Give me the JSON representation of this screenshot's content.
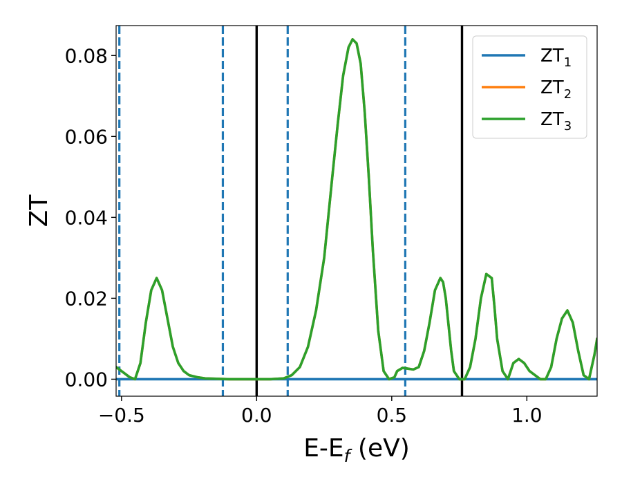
{
  "chart_data": {
    "type": "line",
    "xlabel": "E-E",
    "xlabel_sub": "f",
    "xlabel_unit": " (eV)",
    "ylabel": "ZT",
    "xlim": [
      -0.52,
      1.26
    ],
    "ylim": [
      -0.0042,
      0.0874
    ],
    "xticks": [
      -0.5,
      0.0,
      0.5,
      1.0
    ],
    "xtick_labels": [
      "−0.5",
      "0.0",
      "0.5",
      "1.0"
    ],
    "yticks": [
      0.0,
      0.02,
      0.04,
      0.06,
      0.08
    ],
    "ytick_labels": [
      "0.00",
      "0.02",
      "0.04",
      "0.06",
      "0.08"
    ],
    "grid": false,
    "legend_position": "top-right",
    "vlines": [
      {
        "x": -0.508,
        "style": "dashed",
        "color": "#1f77b4"
      },
      {
        "x": -0.125,
        "style": "dashed",
        "color": "#1f77b4"
      },
      {
        "x": 0.0,
        "style": "solid",
        "color": "#000000"
      },
      {
        "x": 0.115,
        "style": "dashed",
        "color": "#1f77b4"
      },
      {
        "x": 0.55,
        "style": "dashed",
        "color": "#1f77b4"
      },
      {
        "x": 0.76,
        "style": "solid",
        "color": "#000000"
      }
    ],
    "series": [
      {
        "name": "ZT",
        "name_sub": "1",
        "color": "#1f77b4",
        "x": [
          -0.52,
          1.26
        ],
        "y": [
          0.0,
          0.0
        ]
      },
      {
        "name": "ZT",
        "name_sub": "2",
        "color": "#ff7f0e",
        "x": [
          -0.52,
          -0.5,
          -0.47,
          -0.45,
          -0.43,
          -0.41,
          -0.39,
          -0.37,
          -0.35,
          -0.33,
          -0.31,
          -0.29,
          -0.27,
          -0.25,
          -0.22,
          -0.19,
          -0.15,
          -0.1,
          -0.05,
          0.0,
          0.05,
          0.1,
          0.13,
          0.16,
          0.19,
          0.22,
          0.25,
          0.28,
          0.3,
          0.32,
          0.34,
          0.355,
          0.37,
          0.385,
          0.4,
          0.415,
          0.43,
          0.45,
          0.47,
          0.49,
          0.51,
          0.52,
          0.54,
          0.56,
          0.58,
          0.6,
          0.62,
          0.64,
          0.66,
          0.68,
          0.69,
          0.7,
          0.72,
          0.73,
          0.75,
          0.77,
          0.79,
          0.81,
          0.83,
          0.85,
          0.87,
          0.88,
          0.89,
          0.91,
          0.93,
          0.95,
          0.97,
          0.99,
          1.01,
          1.03,
          1.05,
          1.07,
          1.09,
          1.11,
          1.13,
          1.15,
          1.17,
          1.19,
          1.21,
          1.23,
          1.25,
          1.26
        ],
        "y": [
          0.003,
          0.002,
          0.0005,
          0.0,
          0.004,
          0.014,
          0.022,
          0.025,
          0.022,
          0.015,
          0.008,
          0.004,
          0.002,
          0.001,
          0.0005,
          0.0002,
          0.0001,
          0.0,
          0.0,
          0.0,
          0.0,
          0.0002,
          0.001,
          0.003,
          0.008,
          0.017,
          0.03,
          0.05,
          0.063,
          0.075,
          0.082,
          0.084,
          0.083,
          0.078,
          0.066,
          0.05,
          0.032,
          0.012,
          0.002,
          0.0,
          0.0005,
          0.002,
          0.0028,
          0.0026,
          0.0024,
          0.003,
          0.007,
          0.014,
          0.022,
          0.025,
          0.024,
          0.02,
          0.007,
          0.002,
          0.0,
          0.0,
          0.003,
          0.01,
          0.02,
          0.026,
          0.025,
          0.018,
          0.01,
          0.002,
          0.0,
          0.004,
          0.005,
          0.004,
          0.002,
          0.001,
          0.0,
          0.0,
          0.003,
          0.01,
          0.015,
          0.017,
          0.014,
          0.007,
          0.001,
          0.0,
          0.006,
          0.01
        ]
      },
      {
        "name": "ZT",
        "name_sub": "3",
        "color": "#2ca02c",
        "x": [
          -0.52,
          -0.5,
          -0.47,
          -0.45,
          -0.43,
          -0.41,
          -0.39,
          -0.37,
          -0.35,
          -0.33,
          -0.31,
          -0.29,
          -0.27,
          -0.25,
          -0.22,
          -0.19,
          -0.15,
          -0.1,
          -0.05,
          0.0,
          0.05,
          0.1,
          0.13,
          0.16,
          0.19,
          0.22,
          0.25,
          0.28,
          0.3,
          0.32,
          0.34,
          0.355,
          0.37,
          0.385,
          0.4,
          0.415,
          0.43,
          0.45,
          0.47,
          0.49,
          0.51,
          0.52,
          0.54,
          0.56,
          0.58,
          0.6,
          0.62,
          0.64,
          0.66,
          0.68,
          0.69,
          0.7,
          0.72,
          0.73,
          0.75,
          0.77,
          0.79,
          0.81,
          0.83,
          0.85,
          0.87,
          0.88,
          0.89,
          0.91,
          0.93,
          0.95,
          0.97,
          0.99,
          1.01,
          1.03,
          1.05,
          1.07,
          1.09,
          1.11,
          1.13,
          1.15,
          1.17,
          1.19,
          1.21,
          1.23,
          1.25,
          1.26
        ],
        "y": [
          0.003,
          0.002,
          0.0005,
          0.0,
          0.004,
          0.014,
          0.022,
          0.025,
          0.022,
          0.015,
          0.008,
          0.004,
          0.002,
          0.001,
          0.0005,
          0.0002,
          0.0001,
          0.0,
          0.0,
          0.0,
          0.0,
          0.0002,
          0.001,
          0.003,
          0.008,
          0.017,
          0.03,
          0.05,
          0.063,
          0.075,
          0.082,
          0.084,
          0.083,
          0.078,
          0.066,
          0.05,
          0.032,
          0.012,
          0.002,
          0.0,
          0.0005,
          0.002,
          0.0028,
          0.0026,
          0.0024,
          0.003,
          0.007,
          0.014,
          0.022,
          0.025,
          0.024,
          0.02,
          0.007,
          0.002,
          0.0,
          0.0,
          0.003,
          0.01,
          0.02,
          0.026,
          0.025,
          0.018,
          0.01,
          0.002,
          0.0,
          0.004,
          0.005,
          0.004,
          0.002,
          0.001,
          0.0,
          0.0,
          0.003,
          0.01,
          0.015,
          0.017,
          0.014,
          0.007,
          0.001,
          0.0,
          0.006,
          0.01
        ]
      }
    ]
  }
}
